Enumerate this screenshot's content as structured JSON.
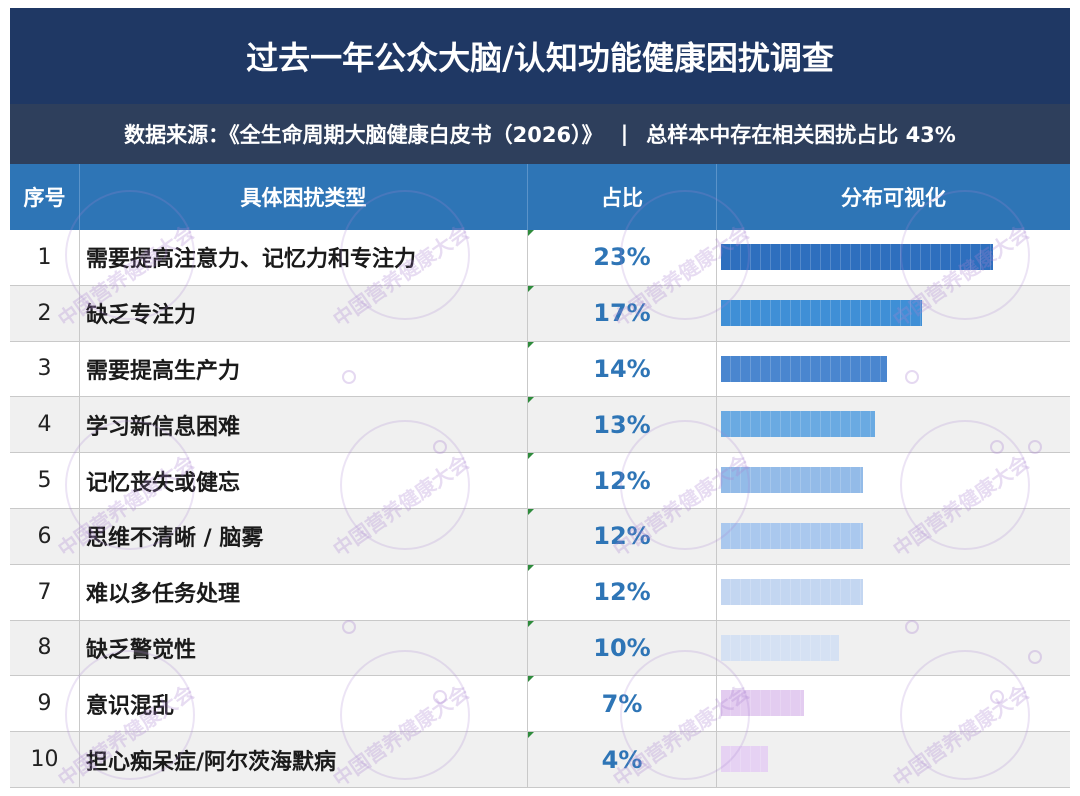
{
  "title": "过去一年公众大脑/认知功能健康困扰调查",
  "source": {
    "text": "数据来源：《全生命周期大脑健康白皮书（2026）》",
    "separator": "|",
    "summary": "总样本中存在相关困扰占比 43%"
  },
  "headers": {
    "index": "序号",
    "type": "具体困扰类型",
    "share": "占比",
    "viz": "分布可视化"
  },
  "watermark": "中国营养健康大会",
  "colors": {
    "title_bg": "#1f3864",
    "source_bg": "#2e3f5c",
    "header_bg": "#2e75b6",
    "percent_text": "#2e75b6"
  },
  "chart_data": {
    "type": "bar",
    "orientation": "horizontal",
    "title": "过去一年公众大脑/认知功能健康困扰调查",
    "xlabel": "",
    "ylabel": "",
    "xlim": [
      0,
      23
    ],
    "categories": [
      "需要提高注意力、记忆力和专注力",
      "缺乏专注力",
      "需要提高生产力",
      "学习新信息困难",
      "记忆丧失或健忘",
      "思维不清晰 / 脑雾",
      "难以多任务处理",
      "缺乏警觉性",
      "意识混乱",
      "担心痴呆症/阿尔茨海默病"
    ],
    "values": [
      23,
      17,
      14,
      13,
      12,
      12,
      12,
      10,
      7,
      4
    ],
    "labels": [
      "23%",
      "17%",
      "14%",
      "13%",
      "12%",
      "12%",
      "12%",
      "10%",
      "7%",
      "4%"
    ],
    "bar_colors": [
      "#2e6fbe",
      "#3f8fd6",
      "#4a86cf",
      "#6aaae2",
      "#93bbe8",
      "#aac8ee",
      "#c3d6f1",
      "#d5e1f3",
      "#e3ccf0",
      "#e6d2f3"
    ],
    "grid": false,
    "legend": "none"
  }
}
